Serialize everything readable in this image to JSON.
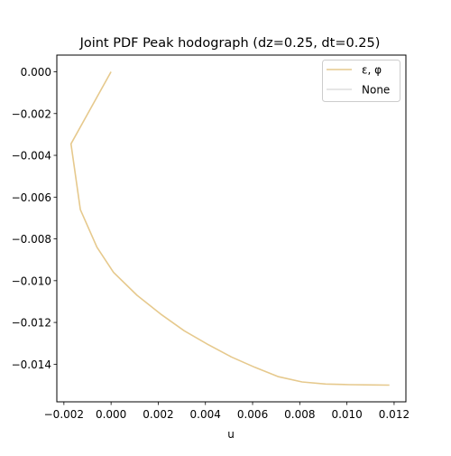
{
  "chart_data": {
    "type": "line",
    "title": "Joint PDF Peak hodograph (dz=0.25, dt=0.25)",
    "xlabel": "u",
    "ylabel": "",
    "xlim": [
      -0.0023,
      0.0125
    ],
    "ylim": [
      -0.0158,
      0.0008
    ],
    "xticks": [
      -0.002,
      0.0,
      0.002,
      0.004,
      0.006,
      0.008,
      0.01,
      0.012
    ],
    "xtick_labels": [
      "−0.002",
      "0.000",
      "0.002",
      "0.004",
      "0.006",
      "0.008",
      "0.010",
      "0.012"
    ],
    "yticks": [
      0.0,
      -0.002,
      -0.004,
      -0.006,
      -0.008,
      -0.01,
      -0.012,
      -0.014
    ],
    "ytick_labels": [
      "0.000",
      "−0.002",
      "−0.004",
      "−0.006",
      "−0.008",
      "−0.010",
      "−0.012",
      "−0.014"
    ],
    "legend_position": "top-right",
    "grid": false,
    "series": [
      {
        "name": "ε, φ",
        "color": "#e6c98d",
        "x": [
          0.0,
          -0.0017,
          -0.0013,
          -0.0006,
          0.0001,
          0.0011,
          0.0021,
          0.0031,
          0.0041,
          0.0051,
          0.0061,
          0.0071,
          0.0081,
          0.0091,
          0.0101,
          0.0111,
          0.0118
        ],
        "y": [
          0.0,
          -0.00345,
          -0.0066,
          -0.0084,
          -0.0096,
          -0.0107,
          -0.0116,
          -0.0124,
          -0.01305,
          -0.01365,
          -0.01415,
          -0.0146,
          -0.01485,
          -0.01495,
          -0.01498,
          -0.01499,
          -0.015
        ]
      },
      {
        "name": "None",
        "color": "#dddddd",
        "x": [],
        "y": []
      }
    ]
  }
}
